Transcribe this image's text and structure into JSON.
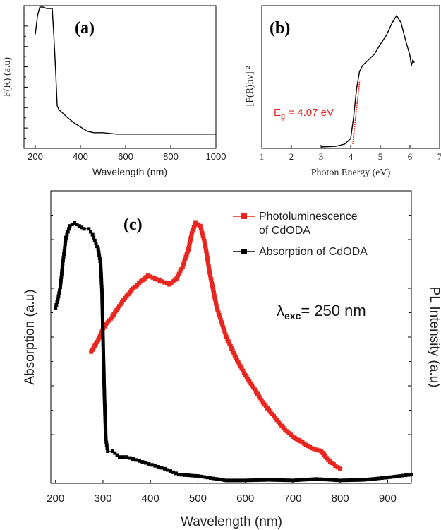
{
  "chart_data": [
    {
      "panel": "(a)",
      "type": "line",
      "xlabel": "Wavelength (nm)",
      "ylabel": "F(R) (a.u)",
      "xlim": [
        150,
        1000
      ],
      "ylim": [
        0,
        1.0
      ],
      "xticks": [
        "200",
        "400",
        "600",
        "800",
        "1000"
      ],
      "x": [
        200,
        210,
        220,
        235,
        250,
        262,
        275,
        282,
        290,
        297,
        305,
        320,
        340,
        370,
        400,
        430,
        460,
        500,
        560,
        620,
        700,
        800,
        900,
        1000
      ],
      "y": [
        0.8,
        0.93,
        0.99,
        0.99,
        0.98,
        0.98,
        0.98,
        0.8,
        0.55,
        0.3,
        0.27,
        0.25,
        0.22,
        0.18,
        0.15,
        0.12,
        0.11,
        0.11,
        0.1,
        0.1,
        0.1,
        0.1,
        0.1,
        0.1
      ],
      "color": "#000000"
    },
    {
      "panel": "(b)",
      "type": "line",
      "xlabel": "Photon Energy (eV)",
      "ylabel": "[F(R)hν] ²",
      "xlim": [
        1,
        7
      ],
      "ylim": [
        0,
        1.0
      ],
      "xticks": [
        "1",
        "2",
        "3",
        "4",
        "5",
        "6",
        "7"
      ],
      "x": [
        3.0,
        3.5,
        3.8,
        4.0,
        4.1,
        4.2,
        4.3,
        4.4,
        4.6,
        4.8,
        5.0,
        5.2,
        5.4,
        5.55,
        5.7,
        5.85,
        6.0,
        6.05,
        6.1,
        6.15
      ],
      "y": [
        0.01,
        0.015,
        0.03,
        0.07,
        0.22,
        0.42,
        0.54,
        0.58,
        0.62,
        0.66,
        0.73,
        0.79,
        0.88,
        0.93,
        0.88,
        0.76,
        0.65,
        0.58,
        0.62,
        0.6
      ],
      "fit_line": {
        "x": [
          4.07,
          4.3
        ],
        "y": [
          0.03,
          0.47
        ],
        "color": "#e8261f"
      },
      "annotation": {
        "main": "E",
        "sub": "g",
        "rest": " = 4.07 eV",
        "color": "#e8261f"
      },
      "color": "#000000"
    },
    {
      "panel": "(c)",
      "type": "line",
      "xlabel": "Wavelength (nm)",
      "ylabel": "Absorption (a.u)",
      "y2label": "PL Intensity (a.u)",
      "xlim": [
        190,
        950
      ],
      "ylim": [
        0,
        1.0
      ],
      "xticks": [
        "200",
        "300",
        "400",
        "500",
        "600",
        "700",
        "800",
        "900"
      ],
      "annotation": {
        "main": "λ",
        "sub": "exc",
        "rest": "= 250 nm"
      },
      "legend_position": "top-right",
      "series": [
        {
          "name": "Photoluminescence of CdODA",
          "legend_lines": [
            "Photoluminescence",
            "of CdODA"
          ],
          "color": "#e8261f",
          "x": [
            275,
            290,
            300,
            320,
            340,
            360,
            380,
            395,
            410,
            425,
            440,
            455,
            468,
            480,
            488,
            495,
            505,
            515,
            525,
            540,
            560,
            580,
            600,
            620,
            640,
            660,
            680,
            700,
            720,
            740,
            760,
            775,
            790,
            800
          ],
          "y": [
            0.45,
            0.49,
            0.53,
            0.57,
            0.62,
            0.66,
            0.69,
            0.71,
            0.7,
            0.69,
            0.68,
            0.7,
            0.74,
            0.8,
            0.86,
            0.89,
            0.88,
            0.82,
            0.72,
            0.6,
            0.5,
            0.43,
            0.37,
            0.32,
            0.27,
            0.23,
            0.19,
            0.16,
            0.14,
            0.12,
            0.11,
            0.08,
            0.06,
            0.05
          ]
        },
        {
          "name": "Absorption of CdODA",
          "legend_lines": [
            "Absorption of CdODA"
          ],
          "color": "#000000",
          "x": [
            200,
            205,
            210,
            215,
            222,
            230,
            240,
            250,
            260,
            270,
            278,
            285,
            290,
            295,
            298,
            300,
            303,
            306,
            310,
            320,
            335,
            350,
            370,
            390,
            410,
            430,
            460,
            500,
            540,
            560,
            600,
            650,
            700,
            750,
            800,
            850,
            900,
            950
          ],
          "y": [
            0.6,
            0.63,
            0.67,
            0.75,
            0.84,
            0.88,
            0.89,
            0.88,
            0.87,
            0.87,
            0.85,
            0.82,
            0.8,
            0.75,
            0.65,
            0.5,
            0.3,
            0.15,
            0.11,
            0.11,
            0.09,
            0.09,
            0.08,
            0.07,
            0.06,
            0.05,
            0.03,
            0.025,
            0.015,
            0.01,
            0.01,
            0.012,
            0.01,
            0.015,
            0.01,
            0.012,
            0.02,
            0.03
          ]
        }
      ]
    }
  ]
}
